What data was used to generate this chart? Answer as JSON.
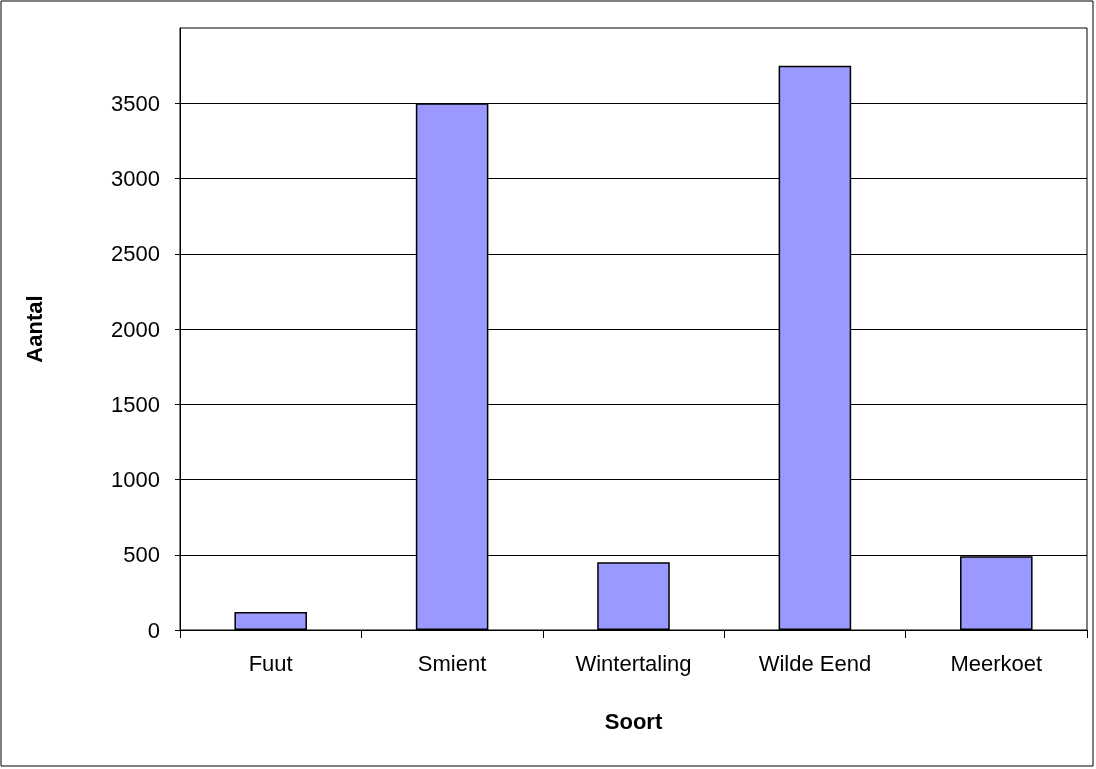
{
  "chart_data": {
    "type": "bar",
    "xlabel": "Soort",
    "ylabel": "Aantal",
    "categories": [
      "Fuut",
      "Smient",
      "Wintertaling",
      "Wilde Eend",
      "Meerkoet"
    ],
    "values": [
      120,
      3500,
      450,
      3750,
      490
    ],
    "color": "#9999ff",
    "ylim": [
      0,
      4000
    ],
    "yticks": [
      0,
      500,
      1000,
      1500,
      2000,
      2500,
      3000,
      3500
    ],
    "grid": "y"
  }
}
